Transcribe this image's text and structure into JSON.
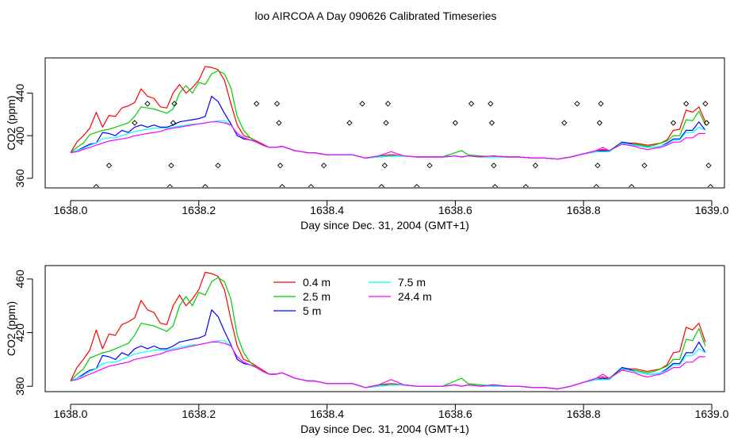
{
  "figure": {
    "title": "loo AIRCOA A  Day 090626  Calibrated Timeseries"
  },
  "chart_data": [
    {
      "type": "scatter+line",
      "xlabel": "Day since Dec. 31, 2004 (GMT+1)",
      "ylabel": "CO2 (ppm)",
      "xlim": [
        1638.0,
        1639.0
      ],
      "ylim": [
        351,
        473
      ],
      "xticks": [
        1638.0,
        1638.2,
        1638.4,
        1638.6,
        1638.8,
        1639.0
      ],
      "xtick_labels": [
        "1638.0",
        "1638.2",
        "1638.4",
        "1638.6",
        "1638.8",
        "1639.0"
      ],
      "yticks": [
        360,
        400,
        440
      ],
      "ytick_labels": [
        "360",
        "400",
        "440"
      ],
      "grid": false,
      "legend": null,
      "marker_points": [
        {
          "x": 1638.04,
          "y": 352
        },
        {
          "x": 1638.06,
          "y": 372
        },
        {
          "x": 1638.1,
          "y": 412
        },
        {
          "x": 1638.12,
          "y": 430
        },
        {
          "x": 1638.155,
          "y": 352
        },
        {
          "x": 1638.157,
          "y": 372
        },
        {
          "x": 1638.16,
          "y": 412
        },
        {
          "x": 1638.162,
          "y": 430
        },
        {
          "x": 1638.21,
          "y": 352
        },
        {
          "x": 1638.23,
          "y": 372
        },
        {
          "x": 1638.29,
          "y": 430
        },
        {
          "x": 1638.322,
          "y": 430
        },
        {
          "x": 1638.325,
          "y": 412
        },
        {
          "x": 1638.327,
          "y": 372
        },
        {
          "x": 1638.33,
          "y": 352
        },
        {
          "x": 1638.375,
          "y": 352
        },
        {
          "x": 1638.395,
          "y": 372
        },
        {
          "x": 1638.435,
          "y": 412
        },
        {
          "x": 1638.455,
          "y": 430
        },
        {
          "x": 1638.485,
          "y": 352
        },
        {
          "x": 1638.49,
          "y": 372
        },
        {
          "x": 1638.492,
          "y": 412
        },
        {
          "x": 1638.495,
          "y": 430
        },
        {
          "x": 1638.54,
          "y": 352
        },
        {
          "x": 1638.56,
          "y": 372
        },
        {
          "x": 1638.6,
          "y": 412
        },
        {
          "x": 1638.625,
          "y": 430
        },
        {
          "x": 1638.655,
          "y": 430
        },
        {
          "x": 1638.657,
          "y": 412
        },
        {
          "x": 1638.66,
          "y": 372
        },
        {
          "x": 1638.662,
          "y": 352
        },
        {
          "x": 1638.71,
          "y": 352
        },
        {
          "x": 1638.725,
          "y": 372
        },
        {
          "x": 1638.77,
          "y": 412
        },
        {
          "x": 1638.79,
          "y": 430
        },
        {
          "x": 1638.82,
          "y": 352
        },
        {
          "x": 1638.822,
          "y": 372
        },
        {
          "x": 1638.825,
          "y": 412
        },
        {
          "x": 1638.827,
          "y": 430
        },
        {
          "x": 1638.875,
          "y": 352
        },
        {
          "x": 1638.895,
          "y": 372
        },
        {
          "x": 1638.94,
          "y": 412
        },
        {
          "x": 1638.96,
          "y": 430
        },
        {
          "x": 1638.99,
          "y": 430
        },
        {
          "x": 1638.992,
          "y": 412
        },
        {
          "x": 1638.995,
          "y": 372
        },
        {
          "x": 1638.998,
          "y": 352
        }
      ],
      "series_ref": "shared_series"
    },
    {
      "type": "line",
      "xlabel": "Day since Dec. 31, 2004 (GMT+1)",
      "ylabel": "CO2 (ppm)",
      "xlim": [
        1638.0,
        1639.0
      ],
      "ylim": [
        376,
        470
      ],
      "xticks": [
        1638.0,
        1638.2,
        1638.4,
        1638.6,
        1638.8,
        1639.0
      ],
      "xtick_labels": [
        "1638.0",
        "1638.2",
        "1638.4",
        "1638.6",
        "1638.8",
        "1639.0"
      ],
      "yticks": [
        380,
        420,
        460
      ],
      "ytick_labels": [
        "380",
        "420",
        "460"
      ],
      "grid": false,
      "legend": {
        "placement": "top-left",
        "entries": [
          {
            "label": "0.4 m",
            "color": "#ff0000"
          },
          {
            "label": "2.5 m",
            "color": "#00cc00"
          },
          {
            "label": "5 m",
            "color": "#0000ff"
          },
          {
            "label": "7.5 m",
            "color": "#00ffff"
          },
          {
            "label": "24.4 m",
            "color": "#ff00ff"
          }
        ]
      },
      "series_ref": "shared_series"
    }
  ],
  "shared_series": {
    "x": [
      1638.0,
      1638.01,
      1638.02,
      1638.03,
      1638.04,
      1638.05,
      1638.06,
      1638.07,
      1638.08,
      1638.09,
      1638.1,
      1638.11,
      1638.12,
      1638.13,
      1638.14,
      1638.15,
      1638.16,
      1638.17,
      1638.18,
      1638.19,
      1638.2,
      1638.21,
      1638.22,
      1638.23,
      1638.24,
      1638.25,
      1638.26,
      1638.27,
      1638.28,
      1638.29,
      1638.3,
      1638.31,
      1638.32,
      1638.33,
      1638.34,
      1638.35,
      1638.36,
      1638.37,
      1638.38,
      1638.39,
      1638.4,
      1638.42,
      1638.44,
      1638.46,
      1638.48,
      1638.5,
      1638.52,
      1638.54,
      1638.56,
      1638.58,
      1638.6,
      1638.61,
      1638.62,
      1638.64,
      1638.66,
      1638.68,
      1638.7,
      1638.72,
      1638.74,
      1638.76,
      1638.78,
      1638.8,
      1638.82,
      1638.83,
      1638.84,
      1638.86,
      1638.87,
      1638.88,
      1638.89,
      1638.9,
      1638.91,
      1638.92,
      1638.93,
      1638.94,
      1638.95,
      1638.96,
      1638.97,
      1638.98,
      1638.99
    ],
    "series": [
      {
        "name": "0.4 m",
        "color": "#ff0000",
        "values": [
          384,
          394,
          400,
          407,
          422,
          408,
          419,
          418,
          426,
          428,
          431,
          444,
          437,
          435,
          427,
          426,
          440,
          448,
          440,
          445,
          452,
          465,
          464,
          462,
          452,
          430,
          410,
          400,
          398,
          395,
          392,
          389,
          389,
          390,
          388,
          386,
          385,
          384,
          384,
          383,
          382,
          382,
          382,
          379,
          381,
          382,
          381,
          380,
          380,
          380,
          381,
          380,
          381,
          380,
          381,
          380,
          380,
          379,
          379,
          378,
          380,
          383,
          386,
          387,
          386,
          392,
          393,
          393,
          392,
          391,
          392,
          393,
          396,
          405,
          406,
          424,
          422,
          427,
          413
        ]
      },
      {
        "name": "2.5 m",
        "color": "#00cc00",
        "values": [
          384,
          389,
          393,
          401,
          403,
          405,
          406,
          408,
          410,
          412,
          418,
          427,
          426,
          425,
          423,
          421,
          425,
          440,
          447,
          440,
          450,
          448,
          458,
          461,
          458,
          445,
          418,
          405,
          398,
          394,
          391,
          389,
          389,
          390,
          388,
          386,
          385,
          384,
          384,
          383,
          382,
          382,
          382,
          379,
          381,
          381,
          381,
          380,
          380,
          380,
          384,
          386,
          382,
          381,
          380,
          380,
          380,
          379,
          379,
          378,
          380,
          383,
          385,
          385,
          386,
          394,
          392,
          392,
          391,
          390,
          391,
          393,
          395,
          400,
          400,
          415,
          414,
          423,
          410
        ]
      },
      {
        "name": "5 m",
        "color": "#0000ff",
        "values": [
          384,
          386,
          389,
          392,
          393,
          403,
          402,
          400,
          405,
          403,
          408,
          410,
          408,
          410,
          408,
          408,
          410,
          413,
          414,
          415,
          416,
          418,
          437,
          432,
          421,
          411,
          400,
          397,
          396,
          394,
          391,
          389,
          389,
          390,
          388,
          386,
          385,
          384,
          384,
          383,
          382,
          382,
          382,
          379,
          380,
          381,
          381,
          380,
          380,
          380,
          381,
          380,
          381,
          380,
          381,
          380,
          380,
          379,
          379,
          378,
          380,
          383,
          385,
          386,
          385,
          394,
          393,
          391,
          390,
          389,
          389,
          390,
          393,
          397,
          397,
          405,
          405,
          413,
          405
        ]
      },
      {
        "name": "7.5 m",
        "color": "#00ffff",
        "values": [
          384,
          386,
          388,
          391,
          393,
          397,
          398,
          398,
          400,
          402,
          404,
          405,
          406,
          407,
          407,
          407,
          408,
          409,
          410,
          411,
          411,
          412,
          413,
          414,
          414,
          410,
          402,
          398,
          396,
          394,
          391,
          389,
          389,
          390,
          388,
          386,
          385,
          384,
          384,
          383,
          382,
          382,
          382,
          379,
          380,
          381,
          381,
          380,
          380,
          380,
          381,
          380,
          381,
          380,
          380,
          380,
          380,
          379,
          379,
          378,
          380,
          383,
          385,
          385,
          385,
          393,
          392,
          391,
          390,
          389,
          389,
          390,
          392,
          396,
          396,
          403,
          403,
          408,
          405
        ]
      },
      {
        "name": "24.4 m",
        "color": "#ff00ff",
        "values": [
          384,
          385,
          387,
          389,
          391,
          393,
          395,
          396,
          397,
          398,
          400,
          401,
          402,
          403,
          404,
          406,
          407,
          408,
          409,
          410,
          411,
          412,
          413,
          413,
          412,
          410,
          402,
          398,
          396,
          394,
          391,
          389,
          389,
          390,
          388,
          386,
          385,
          384,
          384,
          383,
          382,
          382,
          382,
          379,
          381,
          385,
          381,
          380,
          380,
          380,
          381,
          380,
          381,
          380,
          381,
          380,
          380,
          379,
          379,
          378,
          380,
          383,
          386,
          389,
          386,
          392,
          391,
          390,
          388,
          387,
          388,
          389,
          391,
          394,
          394,
          398,
          398,
          402,
          402
        ]
      }
    ]
  }
}
